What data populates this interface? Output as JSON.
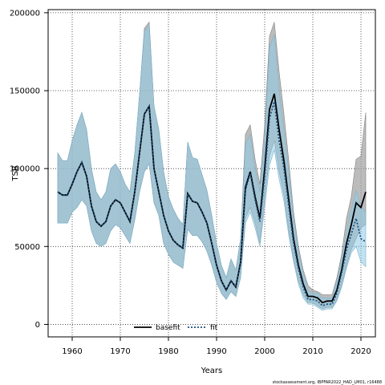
{
  "chart_data": {
    "type": "line",
    "xlabel": "Years",
    "ylabel": "TSB",
    "xlim": [
      1955,
      2023
    ],
    "ylim": [
      -8000,
      202000
    ],
    "x_ticks": [
      1960,
      1970,
      1980,
      1990,
      2000,
      2010,
      2020
    ],
    "y_ticks": [
      0,
      50000,
      100000,
      150000,
      200000
    ],
    "y_tick_labels": [
      "0",
      "50000",
      "100000",
      "150000",
      "200000"
    ],
    "grid": true,
    "legend_position": "bottom-center",
    "legend": [
      {
        "label": "basefit",
        "color": "#000000",
        "style": "solid"
      },
      {
        "label": "fit",
        "color": "#1f4e79",
        "style": "dotted"
      }
    ],
    "series": [
      {
        "name": "basefit",
        "color": "#000000",
        "x": [
          1957,
          1958,
          1959,
          1960,
          1961,
          1962,
          1963,
          1964,
          1965,
          1966,
          1967,
          1968,
          1969,
          1970,
          1971,
          1972,
          1973,
          1974,
          1975,
          1976,
          1977,
          1978,
          1979,
          1980,
          1981,
          1982,
          1983,
          1984,
          1985,
          1986,
          1987,
          1988,
          1989,
          1990,
          1991,
          1992,
          1993,
          1994,
          1995,
          1996,
          1997,
          1998,
          1999,
          2000,
          2001,
          2002,
          2003,
          2004,
          2005,
          2006,
          2007,
          2008,
          2009,
          2010,
          2011,
          2012,
          2013,
          2014,
          2015,
          2016,
          2017,
          2018,
          2019,
          2020,
          2021
        ],
        "values": [
          85000,
          83000,
          83000,
          90000,
          98000,
          104000,
          95000,
          76000,
          66000,
          63000,
          66000,
          76000,
          80000,
          78000,
          72000,
          66000,
          85000,
          110000,
          135000,
          140000,
          100000,
          85000,
          70000,
          60000,
          54000,
          51000,
          49000,
          84000,
          79000,
          78000,
          72000,
          65000,
          52000,
          38000,
          28000,
          22000,
          28000,
          24000,
          40000,
          88000,
          98000,
          82000,
          68000,
          100000,
          138000,
          148000,
          125000,
          105000,
          80000,
          55000,
          38000,
          26000,
          18000,
          18000,
          17000,
          14000,
          15000,
          15000,
          22000,
          35000,
          52000,
          64000,
          78000,
          75000,
          85000
        ],
        "ci_lower": [
          65000,
          65000,
          65000,
          72000,
          75000,
          80000,
          76000,
          60000,
          52000,
          50000,
          52000,
          60000,
          64000,
          62000,
          57000,
          52000,
          67000,
          85000,
          98000,
          103000,
          78000,
          70000,
          52000,
          45000,
          40000,
          38000,
          36000,
          61000,
          57000,
          57000,
          53000,
          47000,
          38000,
          27000,
          20000,
          16000,
          21000,
          18000,
          30000,
          68000,
          75000,
          65000,
          52000,
          80000,
          108000,
          118000,
          98000,
          83000,
          60000,
          42000,
          28000,
          19000,
          14000,
          14000,
          12000,
          10000,
          11000,
          11000,
          16000,
          25000,
          38000,
          48000,
          55000,
          62000,
          64000
        ],
        "ci_upper": [
          110000,
          105000,
          105000,
          118000,
          128000,
          136000,
          125000,
          100000,
          85000,
          80000,
          85000,
          100000,
          103000,
          98000,
          90000,
          85000,
          110000,
          148000,
          190000,
          194000,
          140000,
          125000,
          98000,
          82000,
          74000,
          68000,
          64000,
          117000,
          107000,
          106000,
          96000,
          86000,
          70000,
          52000,
          38000,
          30000,
          42000,
          35000,
          55000,
          122000,
          128000,
          106000,
          90000,
          128000,
          185000,
          194000,
          162000,
          135000,
          105000,
          72000,
          50000,
          35000,
          25000,
          22000,
          21000,
          19000,
          19000,
          19000,
          30000,
          45000,
          68000,
          82000,
          106000,
          108000,
          136000
        ]
      },
      {
        "name": "fit",
        "color": "#1f4e79",
        "x": [
          1957,
          1958,
          1959,
          1960,
          1961,
          1962,
          1963,
          1964,
          1965,
          1966,
          1967,
          1968,
          1969,
          1970,
          1971,
          1972,
          1973,
          1974,
          1975,
          1976,
          1977,
          1978,
          1979,
          1980,
          1981,
          1982,
          1983,
          1984,
          1985,
          1986,
          1987,
          1988,
          1989,
          1990,
          1991,
          1992,
          1993,
          1994,
          1995,
          1996,
          1997,
          1998,
          1999,
          2000,
          2001,
          2002,
          2003,
          2004,
          2005,
          2006,
          2007,
          2008,
          2009,
          2010,
          2011,
          2012,
          2013,
          2014,
          2015,
          2016,
          2017,
          2018,
          2019,
          2020,
          2021
        ],
        "values": [
          85000,
          83000,
          83000,
          90000,
          98000,
          104000,
          95000,
          76000,
          66000,
          63000,
          66000,
          76000,
          80000,
          78000,
          72000,
          66000,
          85000,
          110000,
          135000,
          140000,
          100000,
          85000,
          70000,
          60000,
          54000,
          51000,
          49000,
          84000,
          79000,
          78000,
          72000,
          65000,
          52000,
          38000,
          28000,
          22000,
          28000,
          24000,
          40000,
          86000,
          97000,
          80000,
          66000,
          95000,
          132000,
          143000,
          118000,
          100000,
          76000,
          52000,
          36000,
          24000,
          16000,
          16000,
          15000,
          12000,
          13000,
          13000,
          20000,
          33000,
          48000,
          58000,
          68000,
          55000,
          53000
        ],
        "ci_lower": [
          65000,
          65000,
          65000,
          72000,
          75000,
          80000,
          76000,
          60000,
          52000,
          50000,
          52000,
          60000,
          64000,
          62000,
          57000,
          52000,
          67000,
          85000,
          98000,
          103000,
          78000,
          70000,
          52000,
          45000,
          40000,
          38000,
          36000,
          61000,
          57000,
          57000,
          53000,
          47000,
          38000,
          27000,
          20000,
          16000,
          21000,
          18000,
          30000,
          65000,
          72000,
          62000,
          50000,
          75000,
          102000,
          112000,
          93000,
          79000,
          57000,
          40000,
          26000,
          17000,
          13000,
          13000,
          11000,
          9000,
          10000,
          10000,
          15000,
          24000,
          36000,
          46000,
          50000,
          40000,
          37000
        ],
        "ci_upper": [
          110000,
          105000,
          105000,
          118000,
          128000,
          136000,
          125000,
          100000,
          85000,
          80000,
          85000,
          100000,
          103000,
          98000,
          90000,
          85000,
          110000,
          148000,
          188000,
          192000,
          140000,
          125000,
          98000,
          82000,
          74000,
          68000,
          64000,
          117000,
          107000,
          106000,
          96000,
          86000,
          70000,
          52000,
          38000,
          30000,
          42000,
          35000,
          55000,
          116000,
          122000,
          100000,
          85000,
          120000,
          178000,
          186000,
          150000,
          125000,
          98000,
          68000,
          47000,
          33000,
          22000,
          20000,
          20000,
          17000,
          17000,
          17000,
          28000,
          42000,
          60000,
          74000,
          86000,
          76000,
          72000
        ]
      }
    ]
  },
  "footer": "stockassessment.org, IBPFAR2022_HAD_LM01, r16488"
}
